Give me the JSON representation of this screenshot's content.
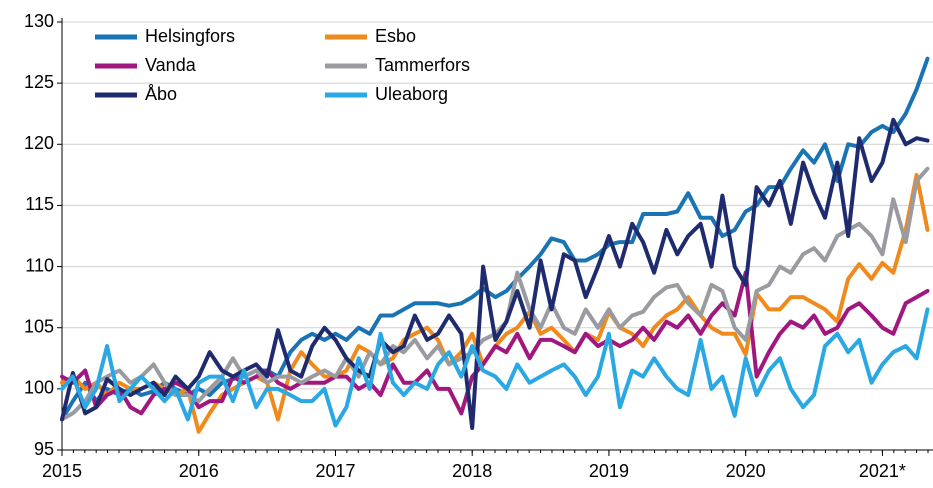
{
  "chart_data": {
    "type": "line",
    "x": [
      2015.0,
      2015.08,
      2015.17,
      2015.25,
      2015.33,
      2015.42,
      2015.5,
      2015.58,
      2015.67,
      2015.75,
      2015.83,
      2015.92,
      2016.0,
      2016.08,
      2016.17,
      2016.25,
      2016.33,
      2016.42,
      2016.5,
      2016.58,
      2016.67,
      2016.75,
      2016.83,
      2016.92,
      2017.0,
      2017.08,
      2017.17,
      2017.25,
      2017.33,
      2017.42,
      2017.5,
      2017.58,
      2017.67,
      2017.75,
      2017.83,
      2017.92,
      2018.0,
      2018.08,
      2018.17,
      2018.25,
      2018.33,
      2018.42,
      2018.5,
      2018.58,
      2018.67,
      2018.75,
      2018.83,
      2018.92,
      2019.0,
      2019.08,
      2019.17,
      2019.25,
      2019.33,
      2019.42,
      2019.5,
      2019.58,
      2019.67,
      2019.75,
      2019.83,
      2019.92,
      2020.0,
      2020.08,
      2020.17,
      2020.25,
      2020.33,
      2020.42,
      2020.5,
      2020.58,
      2020.67,
      2020.75,
      2020.83,
      2020.92,
      2021.0,
      2021.08,
      2021.17,
      2021.25,
      2021.33
    ],
    "series": [
      {
        "name": "Helsingfors",
        "color": "#1a74b3",
        "values": [
          97.5,
          99,
          100.5,
          99,
          100,
          99.5,
          100,
          99.5,
          99.8,
          100.5,
          100,
          99.5,
          100,
          99.5,
          100.5,
          100.8,
          101,
          101.5,
          101.5,
          101,
          103,
          104,
          104.5,
          104,
          104.5,
          104,
          105,
          104.5,
          106,
          106,
          106.5,
          107,
          107,
          107,
          106.8,
          107,
          107.5,
          108.2,
          107.5,
          108,
          109,
          110,
          111,
          112.3,
          112,
          110.5,
          110.5,
          111,
          111.8,
          112,
          112,
          114.3,
          114.3,
          114.3,
          114.5,
          116,
          114,
          114,
          112.5,
          113,
          114.5,
          115,
          116.5,
          116.5,
          118,
          119.5,
          118.5,
          120,
          117,
          120,
          119.8,
          121,
          121.5,
          121,
          122.5,
          124.5,
          127
        ]
      },
      {
        "name": "Esbo",
        "color": "#f08a1c",
        "values": [
          100.5,
          101,
          100,
          100.5,
          99.5,
          100.5,
          100,
          100,
          100.5,
          100,
          99.5,
          100,
          96.5,
          98,
          99.5,
          100,
          100.5,
          101,
          100.5,
          97.5,
          101.5,
          103,
          102,
          101,
          101,
          101.5,
          103.5,
          103,
          102,
          102.5,
          104,
          104.5,
          105,
          104,
          102,
          103,
          104.5,
          102,
          103.5,
          104.5,
          105,
          106.3,
          104.5,
          105,
          104,
          103,
          104.5,
          104,
          106.3,
          105,
          104.5,
          103.5,
          105,
          106,
          106.5,
          107.5,
          106,
          105,
          104.5,
          104.5,
          102.8,
          107.8,
          106.5,
          106.5,
          107.5,
          107.5,
          107,
          106.5,
          105.5,
          109,
          110.2,
          109,
          110.3,
          109.5,
          113,
          117.5,
          113
        ]
      },
      {
        "name": "Vanda",
        "color": "#a0177f",
        "values": [
          101,
          100.5,
          101.5,
          98.5,
          99.5,
          100,
          98.5,
          98,
          99.5,
          100,
          100.5,
          100,
          98.5,
          99,
          99,
          101,
          100.5,
          101,
          101.5,
          100.5,
          100,
          100.5,
          100.5,
          100.5,
          101,
          101,
          100,
          100.5,
          99.5,
          102,
          100.5,
          100.5,
          101.5,
          100,
          100,
          98,
          101,
          102,
          103.5,
          103,
          104.5,
          102.5,
          104,
          104,
          103.5,
          103,
          104.5,
          103.5,
          104,
          103.5,
          104,
          105,
          104,
          105.5,
          105,
          106,
          104.5,
          106,
          107,
          106,
          109.5,
          101,
          103,
          104.5,
          105.5,
          105,
          106,
          104.5,
          105,
          106.5,
          107,
          106,
          105,
          104.5,
          107,
          107.5,
          108
        ]
      },
      {
        "name": "Tammerfors",
        "color": "#9a9ba1",
        "values": [
          97.5,
          98,
          99,
          100.5,
          101,
          101.5,
          100.5,
          101,
          102,
          100.5,
          99.5,
          99.5,
          99,
          100,
          101,
          102.5,
          101,
          101.5,
          100.5,
          101,
          101,
          100.5,
          101,
          101.5,
          101,
          102.5,
          101,
          103,
          102,
          103.5,
          103,
          104,
          102.5,
          103.5,
          102,
          102.5,
          103,
          104,
          104.5,
          105.5,
          109.5,
          106.5,
          105,
          107,
          105,
          104.5,
          106.5,
          105,
          106.5,
          105,
          106,
          106.3,
          107.5,
          108.3,
          108.5,
          107,
          106,
          108.5,
          108,
          105,
          104,
          108,
          108.5,
          110,
          109.5,
          111,
          111.5,
          110.5,
          112.5,
          113,
          113.5,
          112.5,
          111,
          115.5,
          112,
          117,
          118
        ]
      },
      {
        "name": "Åbo",
        "color": "#1f2b6f",
        "values": [
          97.5,
          101.3,
          98,
          98.5,
          100.8,
          100,
          99.5,
          100,
          100.5,
          99.5,
          101,
          100,
          101,
          103,
          101.5,
          101,
          101.5,
          102,
          101,
          104.8,
          101.5,
          101,
          103.5,
          105,
          104,
          102.5,
          101.5,
          101,
          104,
          103,
          103.5,
          106,
          104,
          104.5,
          106,
          104.5,
          96.8,
          110,
          104,
          105.5,
          108,
          105,
          110.5,
          106.5,
          111,
          110.5,
          107.5,
          110,
          112.5,
          110,
          113.5,
          112,
          109.5,
          113,
          111,
          112.5,
          113.5,
          110,
          115.8,
          110,
          108.5,
          116.5,
          115,
          117,
          113.5,
          118.5,
          116,
          114,
          118.5,
          112.5,
          120.5,
          117,
          118.5,
          122,
          120,
          120.5,
          120.3
        ]
      },
      {
        "name": "Uleaborg",
        "color": "#2aa8e3",
        "values": [
          100,
          101,
          98.5,
          100,
          103.5,
          99,
          100,
          101,
          100,
          99,
          100,
          97.5,
          100.5,
          101,
          101,
          99,
          101.5,
          98.5,
          100,
          100,
          99.5,
          99,
          99,
          100,
          97,
          98.5,
          102.5,
          100,
          104.5,
          100.5,
          99.5,
          100.5,
          100,
          102,
          103,
          101,
          103.5,
          101.5,
          101,
          100,
          102,
          100.5,
          101,
          101.5,
          102,
          101,
          99.5,
          101,
          104.5,
          98.5,
          101.5,
          101,
          102.5,
          101,
          100,
          99.5,
          104,
          100,
          101,
          97.8,
          102.5,
          99.5,
          101.5,
          102.5,
          100,
          98.5,
          99.5,
          103.5,
          104.5,
          103,
          104,
          100.5,
          102,
          103,
          103.5,
          102.5,
          106.5
        ]
      }
    ],
    "xlim": [
      2015,
      2021.37
    ],
    "xticks": [
      2015,
      2016,
      2017,
      2018,
      2019,
      2020,
      {
        "value": 2021,
        "label": "2021*"
      }
    ],
    "ylim": [
      95,
      130
    ],
    "yticks": [
      95,
      100,
      105,
      110,
      115,
      120,
      125,
      130
    ],
    "grid": true
  }
}
